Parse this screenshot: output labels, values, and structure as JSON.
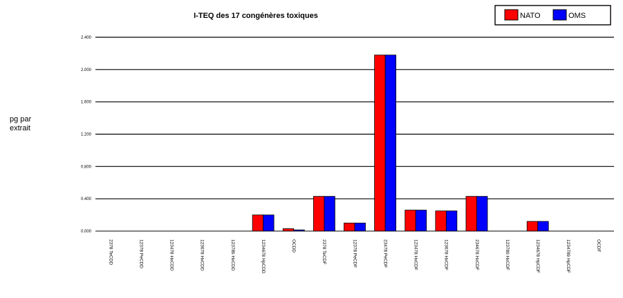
{
  "chart_data": {
    "type": "bar",
    "title": "I-TEQ des 17 congénères toxiques",
    "ylabel_lines": [
      "pg par",
      "extrait"
    ],
    "y_tick_labels": [
      "0.000",
      "0.400",
      "0.800",
      "1.200",
      "1.600",
      "2.000",
      "2.400"
    ],
    "ylim": [
      0,
      2.4
    ],
    "y_ticks": [
      0,
      0.4,
      0.8,
      1.2,
      1.6,
      2.0,
      2.4
    ],
    "grid": true,
    "legend_position": "top-right",
    "categories": [
      "2378 TeCDD",
      "12378 PeCDD",
      "123478 HxCDD",
      "123678 HxCDD",
      "123789 HxCDD",
      "1234678 HpCDD",
      "OCDD",
      "2378 TeCDF",
      "12378 PeCDF",
      "23478 PeCDF",
      "123478 HxCDF",
      "123678 HxCDF",
      "234678 HxCDF",
      "123789 HxCDF",
      "1234678 HpCDF",
      "1234789 HpCDF",
      "OCDF"
    ],
    "series": [
      {
        "name": "NATO",
        "color": "#ff0000",
        "values": [
          0,
          0,
          0,
          0,
          0,
          0.2,
          0.03,
          0.43,
          0.1,
          2.18,
          0.26,
          0.25,
          0.43,
          0,
          0.12,
          0,
          0
        ]
      },
      {
        "name": "OMS",
        "color": "#0000ff",
        "values": [
          0,
          0,
          0,
          0,
          0,
          0.2,
          0.015,
          0.43,
          0.1,
          2.18,
          0.26,
          0.25,
          0.43,
          0,
          0.12,
          0,
          0
        ]
      }
    ]
  }
}
